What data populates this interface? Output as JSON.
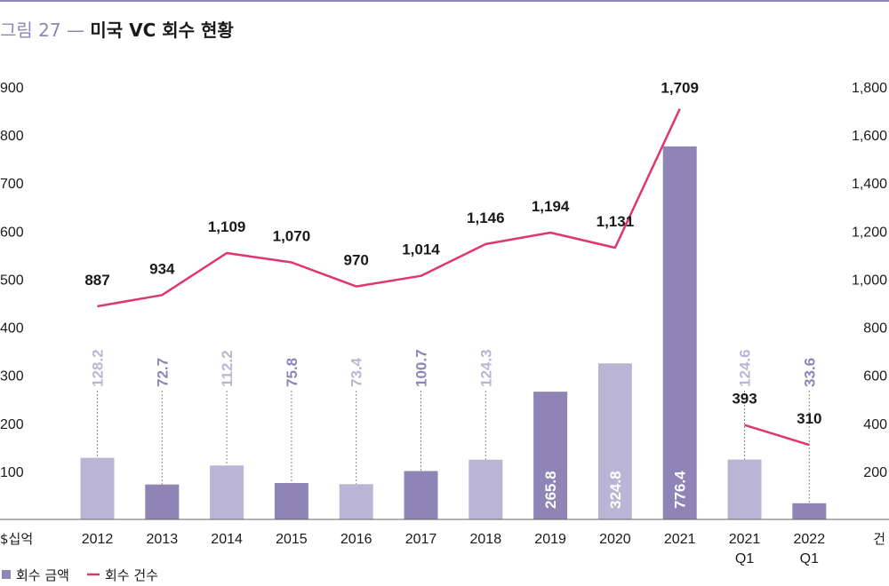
{
  "header": {
    "figure_label": "그림 27",
    "dash": "—",
    "title": "미국 VC 회수 현황"
  },
  "chart_data": {
    "type": "bar",
    "categories": [
      "2012",
      "2013",
      "2014",
      "2015",
      "2016",
      "2017",
      "2018",
      "2019",
      "2020",
      "2021",
      "2021 Q1",
      "2022 Q1"
    ],
    "series": [
      {
        "name": "회수 금액",
        "type": "bar",
        "axis": "left",
        "values": [
          128.2,
          72.7,
          112.2,
          75.8,
          73.4,
          100.7,
          124.3,
          265.8,
          324.8,
          776.4,
          124.6,
          33.6
        ],
        "value_labels": [
          "128.2",
          "72.7",
          "112.2",
          "75.8",
          "73.4",
          "100.7",
          "124.3",
          "265.8",
          "324.8",
          "776.4",
          "124.6",
          "33.6"
        ],
        "colors": [
          "#bbb5d5",
          "#8f84b6",
          "#bbb5d5",
          "#8f84b6",
          "#bbb5d5",
          "#8f84b6",
          "#bbb5d5",
          "#8f84b6",
          "#bbb5d5",
          "#8f84b6",
          "#bbb5d5",
          "#8f84b6"
        ]
      },
      {
        "name": "회수 건수",
        "type": "line",
        "axis": "right",
        "values": [
          887,
          934,
          1109,
          1070,
          970,
          1014,
          1146,
          1194,
          1131,
          1709,
          393,
          310
        ],
        "value_labels": [
          "887",
          "934",
          "1,109",
          "1,070",
          "970",
          "1,014",
          "1,146",
          "1,194",
          "1,131",
          "1,709",
          "393",
          "310"
        ],
        "segments": [
          [
            0,
            9
          ],
          [
            10,
            11
          ]
        ],
        "color": "#e0366e"
      }
    ],
    "left_axis": {
      "unit": "$십억",
      "ylim": [
        0,
        900
      ],
      "ticks": [
        100,
        200,
        300,
        400,
        500,
        600,
        700,
        800,
        900
      ],
      "tick_labels": [
        "100",
        "200",
        "300",
        "400",
        "500",
        "600",
        "700",
        "800",
        "900"
      ]
    },
    "right_axis": {
      "unit": "건",
      "ylim": [
        0,
        1800
      ],
      "ticks": [
        200,
        400,
        600,
        800,
        1000,
        1200,
        1400,
        1600,
        1800
      ],
      "tick_labels": [
        "200",
        "400",
        "600",
        "800",
        "1,000",
        "1,200",
        "1,400",
        "1,600",
        "1,800"
      ]
    },
    "x_tick_labels": [
      [
        "2012"
      ],
      [
        "2013"
      ],
      [
        "2014"
      ],
      [
        "2015"
      ],
      [
        "2016"
      ],
      [
        "2017"
      ],
      [
        "2018"
      ],
      [
        "2019"
      ],
      [
        "2020"
      ],
      [
        "2021"
      ],
      [
        "2021",
        "Q1"
      ],
      [
        "2022",
        "Q1"
      ]
    ],
    "legend": {
      "placement": "bottom-left",
      "items": [
        {
          "label": "회수 금액",
          "marker": "square",
          "color": "#8f84b6"
        },
        {
          "label": "회수 건수",
          "marker": "line",
          "color": "#e0366e"
        }
      ]
    },
    "grid": false
  }
}
